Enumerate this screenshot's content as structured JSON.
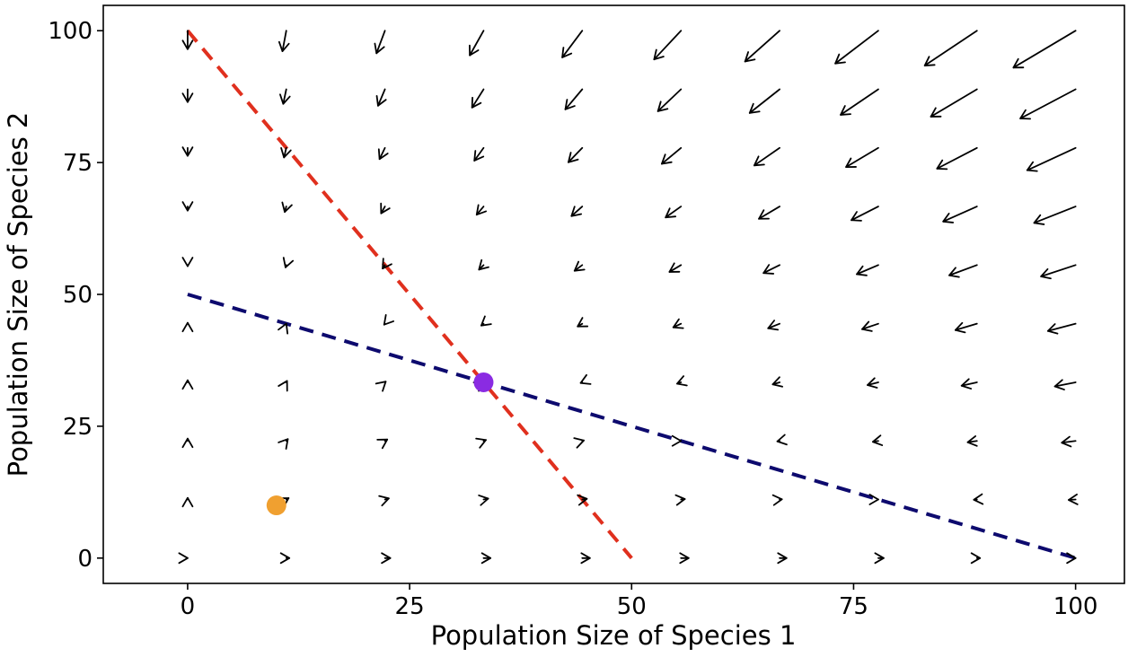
{
  "chart_data": {
    "type": "quiver",
    "xlabel": "Population Size of Species 1",
    "ylabel": "Population Size of Species 2",
    "xlim": [
      -9.5,
      105.5
    ],
    "ylim": [
      -4.8,
      104.8
    ],
    "xticks": [
      0,
      25,
      50,
      75,
      100
    ],
    "yticks": [
      0,
      25,
      50,
      75,
      100
    ],
    "xtick_labels": [
      "0",
      "25",
      "50",
      "75",
      "100"
    ],
    "ytick_labels": [
      "0",
      "25",
      "50",
      "75",
      "100"
    ],
    "grid": false,
    "legend": "none",
    "model": {
      "r1": 1,
      "r2": 1,
      "K1": 100,
      "K2": 50,
      "alpha12": 2,
      "alpha21": 0.5,
      "arrow_scale": 0.035,
      "grid_x": [
        0,
        11.11,
        22.22,
        33.33,
        44.44,
        55.56,
        66.67,
        77.78,
        88.89,
        100
      ],
      "grid_y": [
        0,
        11.11,
        22.22,
        33.33,
        44.44,
        55.56,
        66.67,
        77.78,
        88.89,
        100
      ]
    },
    "isoclines": [
      {
        "color": "#E0301E",
        "x": [
          0,
          50
        ],
        "y": [
          100,
          0
        ]
      },
      {
        "color": "#0D0A6E",
        "x": [
          0,
          100
        ],
        "y": [
          50,
          0
        ]
      }
    ],
    "points": [
      {
        "x": 33.33,
        "y": 33.33,
        "color": "#8A2BE2"
      },
      {
        "x": 10,
        "y": 10,
        "color": "#F0A030"
      }
    ],
    "colors": {
      "arrow": "#000000",
      "axis": "#000000",
      "background": "#ffffff"
    }
  }
}
